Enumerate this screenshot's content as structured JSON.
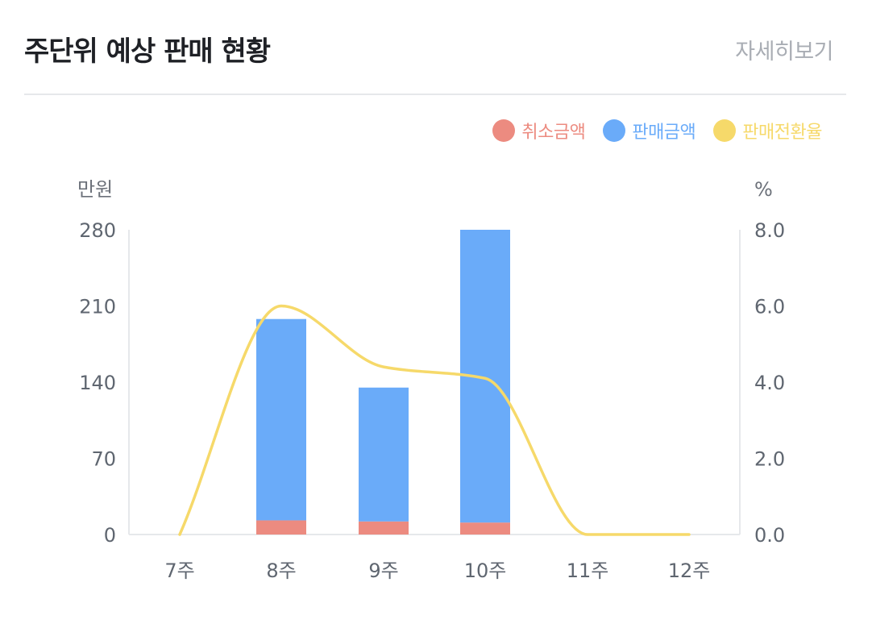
{
  "header": {
    "title": "주단위 예상 판매 현황",
    "detail_label": "자세히보기"
  },
  "legend": [
    {
      "label": "취소금액",
      "color": "#ec8b80"
    },
    {
      "label": "판매금액",
      "color": "#6aabf9"
    },
    {
      "label": "판매전환율",
      "color": "#f6d96a"
    }
  ],
  "chart_data": {
    "type": "bar",
    "categories": [
      "7주",
      "8주",
      "9주",
      "10주",
      "11주",
      "12주"
    ],
    "series": [
      {
        "name": "취소금액",
        "type": "bar",
        "stack": "amount",
        "axis": "left",
        "values": [
          0,
          13,
          12,
          11,
          0,
          0
        ],
        "color": "#ec8b80"
      },
      {
        "name": "판매금액",
        "type": "bar",
        "stack": "amount",
        "axis": "left",
        "values": [
          0,
          185,
          123,
          269,
          0,
          0
        ],
        "color": "#6aabf9"
      },
      {
        "name": "판매전환율",
        "type": "line",
        "smooth": true,
        "axis": "right",
        "values": [
          0,
          6.0,
          4.4,
          4.1,
          0,
          0
        ],
        "color": "#f6d96a"
      }
    ],
    "y_left": {
      "unit": "만원",
      "ticks": [
        "0",
        "70",
        "140",
        "210",
        "280"
      ],
      "range": [
        0,
        280
      ]
    },
    "y_right": {
      "unit": "%",
      "ticks": [
        "0.0",
        "2.0",
        "4.0",
        "6.0",
        "8.0"
      ],
      "range": [
        0,
        8
      ]
    },
    "grid": false
  }
}
